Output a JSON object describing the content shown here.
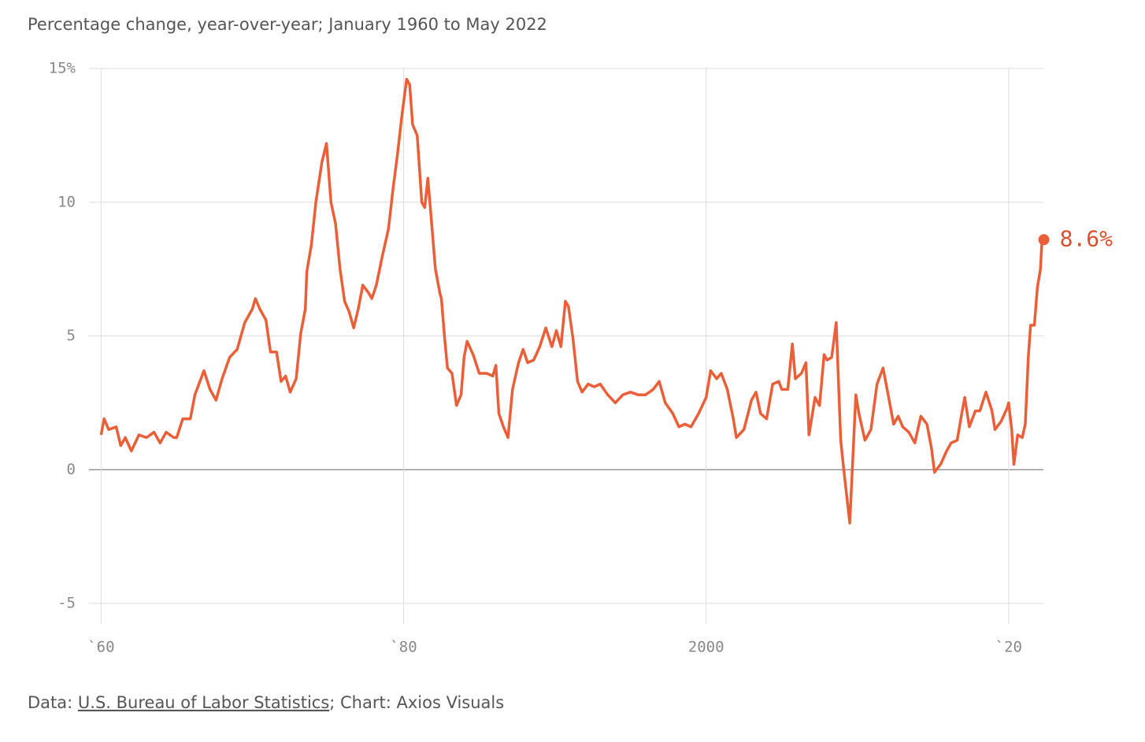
{
  "chart_data": {
    "type": "line",
    "subtitle": "Percentage change, year-over-year; January 1960 to May 2022",
    "color": "#ea5f37",
    "annotation": "8.6%",
    "source": {
      "prefix": "Data: ",
      "link": "U.S. Bureau of Labor Statistics",
      "suffix": "; Chart: Axios Visuals"
    },
    "xlim": [
      1959.2,
      2022.3
    ],
    "ylim": [
      -5,
      15
    ],
    "xticks": [
      {
        "value": 1960,
        "label": "`60"
      },
      {
        "value": 1980,
        "label": "`80"
      },
      2000,
      {
        "value": 2020,
        "label": "`20"
      }
    ],
    "yticks": [
      {
        "value": 15,
        "label": "15%"
      },
      10,
      5,
      0,
      -5
    ],
    "grid": true,
    "x": [
      1960.0,
      1960.2,
      1960.5,
      1961.0,
      1961.3,
      1961.6,
      1962.0,
      1962.5,
      1963.0,
      1963.5,
      1963.9,
      1964.3,
      1964.8,
      1965.0,
      1965.4,
      1965.9,
      1966.2,
      1966.8,
      1967.2,
      1967.6,
      1968.0,
      1968.5,
      1969.0,
      1969.5,
      1970.0,
      1970.2,
      1970.5,
      1970.9,
      1971.2,
      1971.6,
      1971.9,
      1972.2,
      1972.5,
      1972.9,
      1973.2,
      1973.5,
      1973.6,
      1973.9,
      1974.2,
      1974.6,
      1974.9,
      1975.2,
      1975.5,
      1975.8,
      1976.1,
      1976.4,
      1976.7,
      1977.0,
      1977.3,
      1977.7,
      1977.9,
      1978.2,
      1978.6,
      1979.0,
      1979.3,
      1979.6,
      1979.9,
      1980.2,
      1980.4,
      1980.6,
      1980.9,
      1981.2,
      1981.4,
      1981.6,
      1981.9,
      1982.1,
      1982.4,
      1982.5,
      1982.7,
      1982.9,
      1983.2,
      1983.5,
      1983.8,
      1984.0,
      1984.2,
      1984.6,
      1985.0,
      1985.5,
      1985.9,
      1986.1,
      1986.3,
      1986.6,
      1986.9,
      1987.2,
      1987.6,
      1987.9,
      1988.2,
      1988.6,
      1989.0,
      1989.4,
      1989.8,
      1990.1,
      1990.4,
      1990.7,
      1990.9,
      1991.2,
      1991.5,
      1991.8,
      1992.2,
      1992.6,
      1993.0,
      1993.5,
      1994.0,
      1994.5,
      1995.0,
      1995.5,
      1996.0,
      1996.5,
      1996.9,
      1997.3,
      1997.8,
      1998.2,
      1998.6,
      1999.0,
      1999.5,
      2000.0,
      2000.3,
      2000.7,
      2001.0,
      2001.4,
      2001.8,
      2002.0,
      2002.5,
      2003.0,
      2003.3,
      2003.6,
      2004.0,
      2004.4,
      2004.8,
      2005.0,
      2005.4,
      2005.7,
      2005.9,
      2006.3,
      2006.6,
      2006.8,
      2007.2,
      2007.5,
      2007.8,
      2008.0,
      2008.3,
      2008.6,
      2008.9,
      2009.1,
      2009.5,
      2009.9,
      2010.1,
      2010.5,
      2010.9,
      2011.3,
      2011.7,
      2012.0,
      2012.4,
      2012.7,
      2013.0,
      2013.4,
      2013.8,
      2014.2,
      2014.6,
      2014.9,
      2015.1,
      2015.5,
      2015.9,
      2016.2,
      2016.6,
      2016.9,
      2017.1,
      2017.4,
      2017.8,
      2018.1,
      2018.5,
      2018.9,
      2019.1,
      2019.5,
      2019.9,
      2020.0,
      2020.2,
      2020.35,
      2020.6,
      2020.9,
      2021.1,
      2021.3,
      2021.45,
      2021.7,
      2021.9,
      2022.1,
      2022.2,
      2022.33
    ],
    "values": [
      1.3,
      1.9,
      1.5,
      1.6,
      0.9,
      1.2,
      0.7,
      1.3,
      1.2,
      1.4,
      1.0,
      1.4,
      1.2,
      1.2,
      1.9,
      1.9,
      2.8,
      3.7,
      3.0,
      2.6,
      3.4,
      4.2,
      4.5,
      5.5,
      6.0,
      6.4,
      6.0,
      5.6,
      4.4,
      4.4,
      3.3,
      3.5,
      2.9,
      3.4,
      5.1,
      6.0,
      7.4,
      8.4,
      10.0,
      11.5,
      12.2,
      10.0,
      9.2,
      7.5,
      6.3,
      5.9,
      5.3,
      6.0,
      6.9,
      6.6,
      6.4,
      6.9,
      8.0,
      9.0,
      10.5,
      11.8,
      13.3,
      14.6,
      14.4,
      12.9,
      12.5,
      10.0,
      9.8,
      10.9,
      8.9,
      7.5,
      6.6,
      6.4,
      5.0,
      3.8,
      3.6,
      2.4,
      2.8,
      4.2,
      4.8,
      4.3,
      3.6,
      3.6,
      3.5,
      3.9,
      2.1,
      1.6,
      1.2,
      3.0,
      4.0,
      4.5,
      4.0,
      4.1,
      4.6,
      5.3,
      4.6,
      5.2,
      4.6,
      6.3,
      6.1,
      4.9,
      3.3,
      2.9,
      3.2,
      3.1,
      3.2,
      2.8,
      2.5,
      2.8,
      2.9,
      2.8,
      2.8,
      3.0,
      3.3,
      2.5,
      2.1,
      1.6,
      1.7,
      1.6,
      2.1,
      2.7,
      3.7,
      3.4,
      3.6,
      3.0,
      1.9,
      1.2,
      1.5,
      2.6,
      2.9,
      2.1,
      1.9,
      3.2,
      3.3,
      3.0,
      3.0,
      4.7,
      3.4,
      3.6,
      4.0,
      1.3,
      2.7,
      2.4,
      4.3,
      4.1,
      4.2,
      5.5,
      1.1,
      0.0,
      -2.0,
      2.8,
      2.1,
      1.1,
      1.5,
      3.2,
      3.8,
      2.9,
      1.7,
      2.0,
      1.6,
      1.4,
      1.0,
      2.0,
      1.7,
      0.8,
      -0.1,
      0.2,
      0.7,
      1.0,
      1.1,
      2.1,
      2.7,
      1.6,
      2.2,
      2.2,
      2.9,
      2.2,
      1.5,
      1.8,
      2.3,
      2.5,
      1.5,
      0.2,
      1.3,
      1.2,
      1.7,
      4.2,
      5.4,
      5.4,
      6.8,
      7.5,
      8.5,
      8.6
    ]
  }
}
